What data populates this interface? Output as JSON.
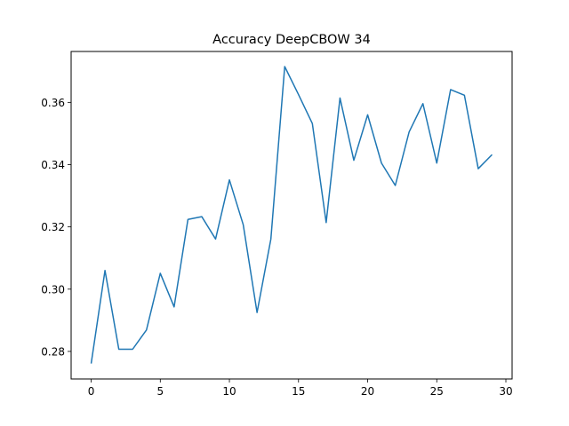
{
  "chart_data": {
    "type": "line",
    "title": "Accuracy DeepCBOW 34",
    "xlabel": "",
    "ylabel": "",
    "xlim": [
      -1.45,
      30.45
    ],
    "ylim": [
      0.27115,
      0.37635
    ],
    "xticks": [
      0,
      5,
      10,
      15,
      20,
      25,
      30
    ],
    "yticks": [
      0.28,
      0.3,
      0.32,
      0.34,
      0.36
    ],
    "xtick_labels": [
      "0",
      "5",
      "10",
      "15",
      "20",
      "25",
      "30"
    ],
    "ytick_labels": [
      "0.28",
      "0.30",
      "0.32",
      "0.34",
      "0.36"
    ],
    "grid": false,
    "legend": "none",
    "series": [
      {
        "color": "#1f77b4",
        "x": [
          0,
          1,
          2,
          3,
          4,
          5,
          6,
          7,
          8,
          9,
          10,
          11,
          12,
          13,
          14,
          15,
          16,
          17,
          18,
          19,
          20,
          21,
          22,
          23,
          24,
          25,
          26,
          27,
          28,
          29
        ],
        "y": [
          0.2761,
          0.306,
          0.2807,
          0.2807,
          0.2869,
          0.3051,
          0.2943,
          0.3224,
          0.3233,
          0.3161,
          0.3351,
          0.3207,
          0.2925,
          0.3161,
          0.3715,
          0.3625,
          0.3532,
          0.3214,
          0.3614,
          0.3414,
          0.356,
          0.3405,
          0.3333,
          0.3505,
          0.3596,
          0.3405,
          0.3641,
          0.3623,
          0.3387,
          0.3432
        ]
      }
    ]
  }
}
